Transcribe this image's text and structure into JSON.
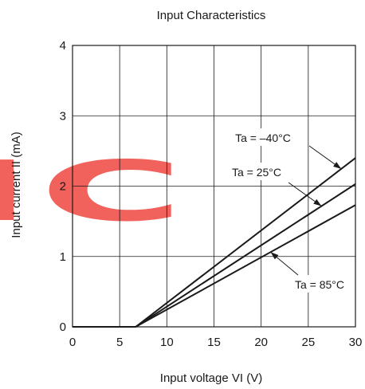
{
  "watermark": {
    "text": "IC",
    "color": "#f0554f"
  },
  "chart_data": {
    "type": "line",
    "title": "Input Characteristics",
    "xlabel": "Input voltage  VI (V)",
    "ylabel": "Input current  II (mA)",
    "xlim": [
      0,
      30
    ],
    "ylim": [
      0,
      4
    ],
    "x_ticks": [
      "0",
      "5",
      "10",
      "15",
      "20",
      "25",
      "30"
    ],
    "y_ticks": [
      "0",
      "1",
      "2",
      "3",
      "4"
    ],
    "grid": true,
    "series": [
      {
        "name": "Ta = –40°C",
        "x": [
          0,
          6.7,
          30
        ],
        "y": [
          0,
          0,
          2.4
        ]
      },
      {
        "name": "Ta = 25°C",
        "x": [
          0,
          6.7,
          30
        ],
        "y": [
          0,
          0,
          2.03
        ]
      },
      {
        "name": "Ta = 85°C",
        "x": [
          0,
          6.7,
          30
        ],
        "y": [
          0,
          0,
          1.73
        ]
      }
    ],
    "annotations": [
      {
        "text": "Ta = –40°C",
        "series": 0
      },
      {
        "text": "Ta = 25°C",
        "series": 1
      },
      {
        "text": "Ta = 85°C",
        "series": 2
      }
    ],
    "line_color": "#1a1a1a"
  }
}
